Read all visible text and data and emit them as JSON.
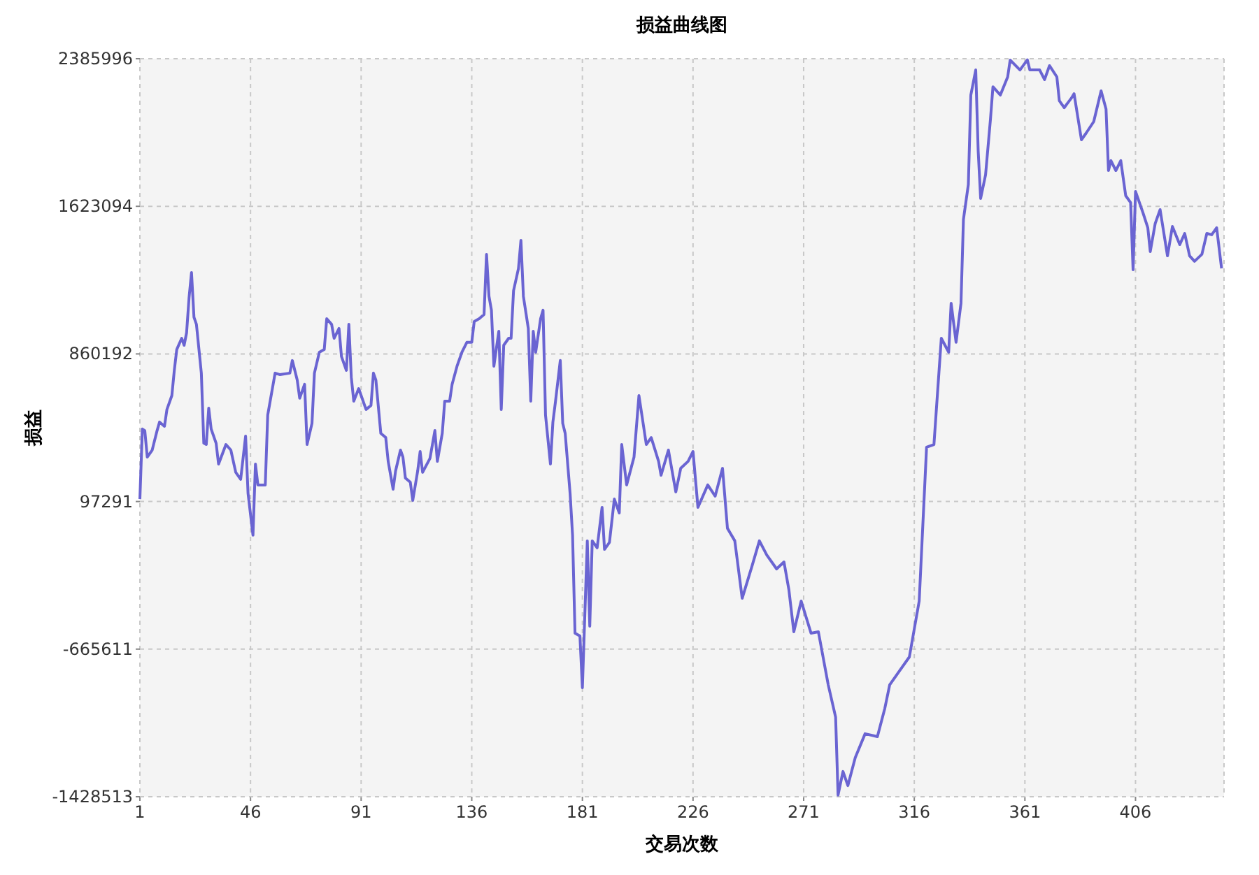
{
  "chart_data": {
    "type": "line",
    "title": "损益曲线图",
    "xlabel": "交易次数",
    "ylabel": "损益",
    "xlim": [
      1,
      442
    ],
    "ylim": [
      -1428513,
      2385996
    ],
    "xticks": [
      1,
      46,
      91,
      136,
      181,
      226,
      271,
      316,
      361,
      406
    ],
    "yticks": [
      -1428513,
      -665611,
      97291,
      860192,
      1623094,
      2385996
    ],
    "grid": true,
    "x": [
      1,
      2,
      3,
      4,
      6,
      8,
      9,
      11,
      12,
      14,
      15,
      16,
      18,
      19,
      20,
      21,
      22,
      23,
      24,
      26,
      27,
      28,
      29,
      30,
      32,
      33,
      36,
      38,
      40,
      42,
      44,
      45,
      47,
      48,
      49,
      52,
      53,
      56,
      58,
      62,
      63,
      65,
      66,
      68,
      69,
      71,
      72,
      74,
      76,
      77,
      79,
      80,
      82,
      83,
      85,
      86,
      87,
      88,
      90,
      93,
      95,
      96,
      97,
      99,
      101,
      102,
      104,
      105,
      107,
      108,
      109,
      111,
      112,
      114,
      115,
      116,
      119,
      121,
      122,
      124,
      125,
      127,
      128,
      130,
      132,
      134,
      136,
      137,
      139,
      141,
      142,
      143,
      144,
      145,
      147,
      148,
      149,
      151,
      152,
      153,
      155,
      156,
      157,
      159,
      160,
      161,
      162,
      164,
      165,
      166,
      168,
      169,
      170,
      172,
      173,
      174,
      176,
      177,
      178,
      180,
      181,
      183,
      184,
      185,
      187,
      189,
      190,
      192,
      194,
      196,
      197,
      199,
      202,
      204,
      207,
      209,
      212,
      213,
      216,
      219,
      221,
      224,
      226,
      228,
      232,
      235,
      238,
      240,
      243,
      246,
      250,
      253,
      256,
      260,
      263,
      265,
      267,
      270,
      274,
      277,
      281,
      284,
      285,
      287,
      289,
      292,
      296,
      301,
      304,
      306,
      310,
      314,
      318,
      321,
      324,
      327,
      330,
      331,
      333,
      335,
      336,
      338,
      339,
      341,
      342,
      343,
      345,
      347,
      348,
      351,
      354,
      355,
      359,
      362,
      363,
      367,
      369,
      371,
      374,
      375,
      377,
      380,
      381,
      384,
      386,
      389,
      392,
      394,
      395,
      396,
      398,
      400,
      402,
      404,
      405,
      406,
      409,
      411,
      412,
      414,
      416,
      419,
      421,
      424,
      426,
      428,
      430,
      433,
      435,
      437,
      439,
      441
    ],
    "series": [
      {
        "color": "#6a64d2",
        "values": [
          110000,
          472000,
          464000,
          327000,
          363000,
          464000,
          508000,
          486000,
          573000,
          645000,
          775000,
          883000,
          941000,
          905000,
          970000,
          1151000,
          1281000,
          1050000,
          1013000,
          761000,
          399000,
          392000,
          580000,
          472000,
          399000,
          291000,
          392000,
          363000,
          248000,
          212000,
          435000,
          139000,
          -77000,
          291000,
          183000,
          183000,
          544000,
          761000,
          753000,
          761000,
          826000,
          725000,
          631000,
          703000,
          392000,
          501000,
          761000,
          869000,
          883000,
          1042000,
          1013000,
          941000,
          992000,
          847000,
          775000,
          1013000,
          739000,
          616000,
          681000,
          573000,
          594000,
          761000,
          725000,
          450000,
          428000,
          305000,
          161000,
          255000,
          363000,
          327000,
          219000,
          197000,
          103000,
          255000,
          356000,
          248000,
          320000,
          464000,
          305000,
          450000,
          616000,
          616000,
          703000,
          797000,
          869000,
          920000,
          920000,
          1028000,
          1042000,
          1064000,
          1375000,
          1158000,
          1086000,
          797000,
          977000,
          573000,
          905000,
          941000,
          941000,
          1187000,
          1302000,
          1447000,
          1158000,
          992000,
          616000,
          977000,
          869000,
          1042000,
          1086000,
          544000,
          291000,
          508000,
          609000,
          826000,
          501000,
          450000,
          139000,
          -77000,
          -583000,
          -598000,
          -865000,
          -106000,
          -547000,
          -106000,
          -142000,
          67000,
          -150000,
          -114000,
          110000,
          38000,
          392000,
          183000,
          327000,
          645000,
          392000,
          428000,
          305000,
          233000,
          363000,
          147000,
          269000,
          305000,
          356000,
          67000,
          183000,
          125000,
          269000,
          -41000,
          -106000,
          -403000,
          -236000,
          -106000,
          -179000,
          -251000,
          -215000,
          -359000,
          -576000,
          -417000,
          -583000,
          -576000,
          -850000,
          -1017000,
          -1420000,
          -1298000,
          -1371000,
          -1226000,
          -1103000,
          -1118000,
          -973000,
          -850000,
          -778000,
          -706000,
          -417000,
          378000,
          392000,
          941000,
          869000,
          1122000,
          920000,
          1122000,
          1555000,
          1736000,
          2198000,
          2328000,
          1909000,
          1664000,
          1786000,
          2075000,
          2241000,
          2198000,
          2292000,
          2379000,
          2328000,
          2380000,
          2328000,
          2328000,
          2278000,
          2350000,
          2292000,
          2169000,
          2133000,
          2184000,
          2205000,
          1967000,
          2003000,
          2061000,
          2220000,
          2126000,
          1808000,
          1859000,
          1808000,
          1859000,
          1678000,
          1642000,
          1295000,
          1700000,
          1591000,
          1512000,
          1389000,
          1534000,
          1606000,
          1367000,
          1519000,
          1425000,
          1483000,
          1367000,
          1339000,
          1375000,
          1483000,
          1476000,
          1512000,
          1302000
        ]
      }
    ]
  }
}
